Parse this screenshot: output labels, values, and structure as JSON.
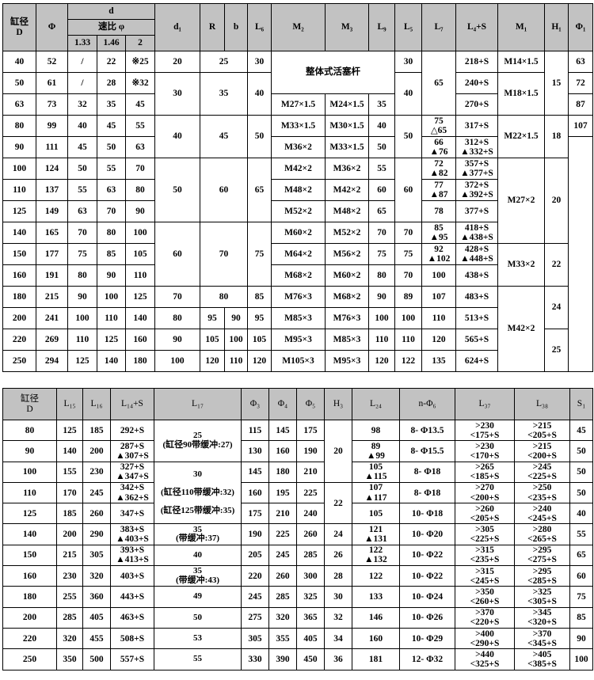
{
  "top_table": {
    "header": {
      "bore": "缸径\nD",
      "phi": "Φ",
      "d": "d",
      "speed_ratio": "速比 φ",
      "ratios": [
        "1.33",
        "1.46",
        "2"
      ],
      "cols": [
        "d₁",
        "R",
        "b",
        "L₆",
        "M₂",
        "M₃",
        "L₉",
        "L₅",
        "L₇",
        "L₄+S",
        "M₁",
        "H₁",
        "Φ₁"
      ]
    },
    "rows": [
      [
        "40",
        "52",
        "/",
        "22",
        "※25",
        "20",
        {
          "v": "25",
          "cs": 2
        },
        null,
        "30",
        {
          "v": "整体式活塞杆",
          "rs": 2,
          "cs": 3
        },
        null,
        null,
        "30",
        {
          "v": "65",
          "rs": 3
        },
        "218+S",
        "M14×1.5",
        {
          "v": "15",
          "rs": 3
        },
        "63"
      ],
      [
        "50",
        "61",
        "/",
        "28",
        "※32",
        {
          "v": "30",
          "rs": 2
        },
        {
          "v": "35",
          "rs": 2,
          "cs": 2
        },
        null,
        {
          "v": "40",
          "rs": 2
        },
        null,
        null,
        null,
        {
          "v": "40",
          "rs": 2
        },
        null,
        "240+S",
        {
          "v": "M18×1.5",
          "rs": 2
        },
        null,
        "72"
      ],
      [
        "63",
        "73",
        "32",
        "35",
        "45",
        null,
        null,
        null,
        null,
        "M27×1.5",
        "M24×1.5",
        "35",
        null,
        null,
        "270+S",
        null,
        null,
        "87"
      ],
      [
        "80",
        "99",
        "40",
        "45",
        "55",
        {
          "v": "40",
          "rs": 2
        },
        {
          "v": "45",
          "rs": 2,
          "cs": 2
        },
        null,
        {
          "v": "50",
          "rs": 2
        },
        "M33×1.5",
        "M30×1.5",
        "40",
        {
          "v": "50",
          "rs": 2
        },
        "75\n△65",
        "317+S",
        {
          "v": "M22×1.5",
          "rs": 2
        },
        {
          "v": "18",
          "rs": 2
        },
        "107"
      ],
      [
        "90",
        "111",
        "45",
        "50",
        "63",
        null,
        null,
        null,
        null,
        "M36×2",
        "M33×1.5",
        "50",
        null,
        "66\n▲76",
        "312+S\n▲332+S",
        null,
        null,
        {
          "v": "",
          "rs": 11
        }
      ],
      [
        "100",
        "124",
        "50",
        "55",
        "70",
        {
          "v": "50",
          "rs": 3
        },
        {
          "v": "60",
          "rs": 3,
          "cs": 2
        },
        null,
        {
          "v": "65",
          "rs": 3
        },
        "M42×2",
        "M36×2",
        "55",
        {
          "v": "60",
          "rs": 3
        },
        "72\n▲82",
        "357+S\n▲377+S",
        {
          "v": "M27×2",
          "rs": 4
        },
        {
          "v": "20",
          "rs": 4
        },
        null
      ],
      [
        "110",
        "137",
        "55",
        "63",
        "80",
        null,
        null,
        null,
        null,
        "M48×2",
        "M42×2",
        "60",
        null,
        "77\n▲87",
        "372+S\n▲392+S",
        null,
        null,
        null
      ],
      [
        "125",
        "149",
        "63",
        "70",
        "90",
        null,
        null,
        null,
        null,
        "M52×2",
        "M48×2",
        "65",
        null,
        "78",
        "377+S",
        null,
        null,
        null
      ],
      [
        "140",
        "165",
        "70",
        "80",
        "100",
        {
          "v": "60",
          "rs": 3
        },
        {
          "v": "70",
          "rs": 3,
          "cs": 2
        },
        null,
        {
          "v": "75",
          "rs": 3
        },
        "M60×2",
        "M52×2",
        "70",
        "70",
        "85\n▲95",
        "418+S\n▲438+S",
        null,
        null,
        null
      ],
      [
        "150",
        "177",
        "75",
        "85",
        "105",
        null,
        null,
        null,
        null,
        "M64×2",
        "M56×2",
        "75",
        "75",
        "92\n▲102",
        "428+S\n▲448+S",
        {
          "v": "M33×2",
          "rs": 2
        },
        {
          "v": "22",
          "rs": 2
        },
        null
      ],
      [
        "160",
        "191",
        "80",
        "90",
        "110",
        null,
        null,
        null,
        null,
        "M68×2",
        "M60×2",
        "80",
        "70",
        "100",
        "438+S",
        null,
        null,
        null
      ],
      [
        "180",
        "215",
        "90",
        "100",
        "125",
        "70",
        {
          "v": "80",
          "cs": 2
        },
        null,
        "85",
        "M76×3",
        "M68×2",
        "90",
        "89",
        "107",
        "483+S",
        {
          "v": "M42×2",
          "rs": 4
        },
        {
          "v": "24",
          "rs": 2
        },
        null
      ],
      [
        "200",
        "241",
        "100",
        "110",
        "140",
        "80",
        "95",
        "90",
        "95",
        "M85×3",
        "M76×3",
        "100",
        "100",
        "110",
        "513+S",
        null,
        null,
        null
      ],
      [
        "220",
        "269",
        "110",
        "125",
        "160",
        "90",
        "105",
        "100",
        "105",
        "M95×3",
        "M85×3",
        "110",
        "110",
        "120",
        "565+S",
        null,
        {
          "v": "25",
          "rs": 2
        },
        null
      ],
      [
        "250",
        "294",
        "125",
        "140",
        "180",
        "100",
        "120",
        "110",
        "120",
        "M105×3",
        "M95×3",
        "120",
        "122",
        "135",
        "624+S",
        null,
        null,
        null
      ]
    ]
  },
  "bottom_table": {
    "header": [
      "缸径\nD",
      "L₁₅",
      "L₁₆",
      "L₁₄+S",
      "L₁₇",
      "Φ₃",
      "Φ₄",
      "Φ₅",
      "H₃",
      "L₂₄",
      "n-Φ₆",
      "L₃₇",
      "L₃₈",
      "S₁"
    ],
    "rows": [
      [
        "80",
        "125",
        "185",
        "292+S",
        {
          "v": "25\n(缸径90带缓冲:27)",
          "rs": 2
        },
        "115",
        "145",
        "175",
        {
          "v": "20",
          "rs": 3
        },
        "98",
        "8- Φ13.5",
        ">230\n<175+S",
        ">215\n<205+S",
        "45"
      ],
      [
        "90",
        "140",
        "200",
        "287+S\n▲307+S",
        null,
        "130",
        "160",
        "190",
        null,
        "89\n▲99",
        "8- Φ15.5",
        ">230\n<170+S",
        ">215\n<200+S",
        "50"
      ],
      [
        "100",
        "155",
        "230",
        "327+S\n▲347+S",
        {
          "v": "30\n\n(缸径110带缓冲:32)\n\n(缸径125带缓冲:35)",
          "rs": 3
        },
        "145",
        "180",
        "210",
        null,
        "105\n▲115",
        "8- Φ18",
        ">265\n<185+S",
        ">245\n<225+S",
        "50"
      ],
      [
        "110",
        "170",
        "245",
        "342+S\n▲362+S",
        null,
        "160",
        "195",
        "225",
        {
          "v": "22",
          "rs": 2
        },
        "107\n▲117",
        "8- Φ18",
        ">270\n<200+S",
        ">250\n<235+S",
        "50"
      ],
      [
        "125",
        "185",
        "260",
        "347+S",
        null,
        "175",
        "210",
        "240",
        null,
        "105",
        "10- Φ18",
        ">260\n<205+S",
        ">240\n<245+S",
        "40"
      ],
      [
        "140",
        "200",
        "290",
        "383+S\n▲403+S",
        "35\n(带缓冲:37)",
        "190",
        "225",
        "260",
        "24",
        "121\n▲131",
        "10- Φ20",
        ">305\n<225+S",
        ">280\n<265+S",
        "55"
      ],
      [
        "150",
        "215",
        "305",
        "393+S\n▲413+S",
        "40",
        "205",
        "245",
        "285",
        "26",
        "122\n▲132",
        "10- Φ22",
        ">315\n<235+S",
        ">295\n<275+S",
        "65"
      ],
      [
        "160",
        "230",
        "320",
        "403+S",
        "35\n(带缓冲:43)",
        "220",
        "260",
        "300",
        "28",
        "122",
        "10- Φ22",
        ">315\n<245+S",
        ">295\n<285+S",
        "60"
      ],
      [
        "180",
        "255",
        "360",
        "443+S",
        "49",
        "245",
        "285",
        "325",
        "30",
        "133",
        "10- Φ24",
        ">350\n<260+S",
        ">325\n<305+S",
        "75"
      ],
      [
        "200",
        "285",
        "405",
        "463+S",
        "50",
        "275",
        "320",
        "365",
        "32",
        "146",
        "10- Φ26",
        ">370\n<220+S",
        ">345\n<320+S",
        "85"
      ],
      [
        "220",
        "320",
        "455",
        "508+S",
        "53",
        "305",
        "355",
        "405",
        "34",
        "160",
        "10- Φ29",
        ">400\n<290+S",
        ">370\n<345+S",
        "90"
      ],
      [
        "250",
        "350",
        "500",
        "557+S",
        "55",
        "330",
        "390",
        "450",
        "36",
        "181",
        "12- Φ32",
        ">440\n<325+S",
        ">405\n<385+S",
        "100"
      ]
    ]
  },
  "colors": {
    "header_bg": "#c2c2c2",
    "border": "#000000"
  }
}
